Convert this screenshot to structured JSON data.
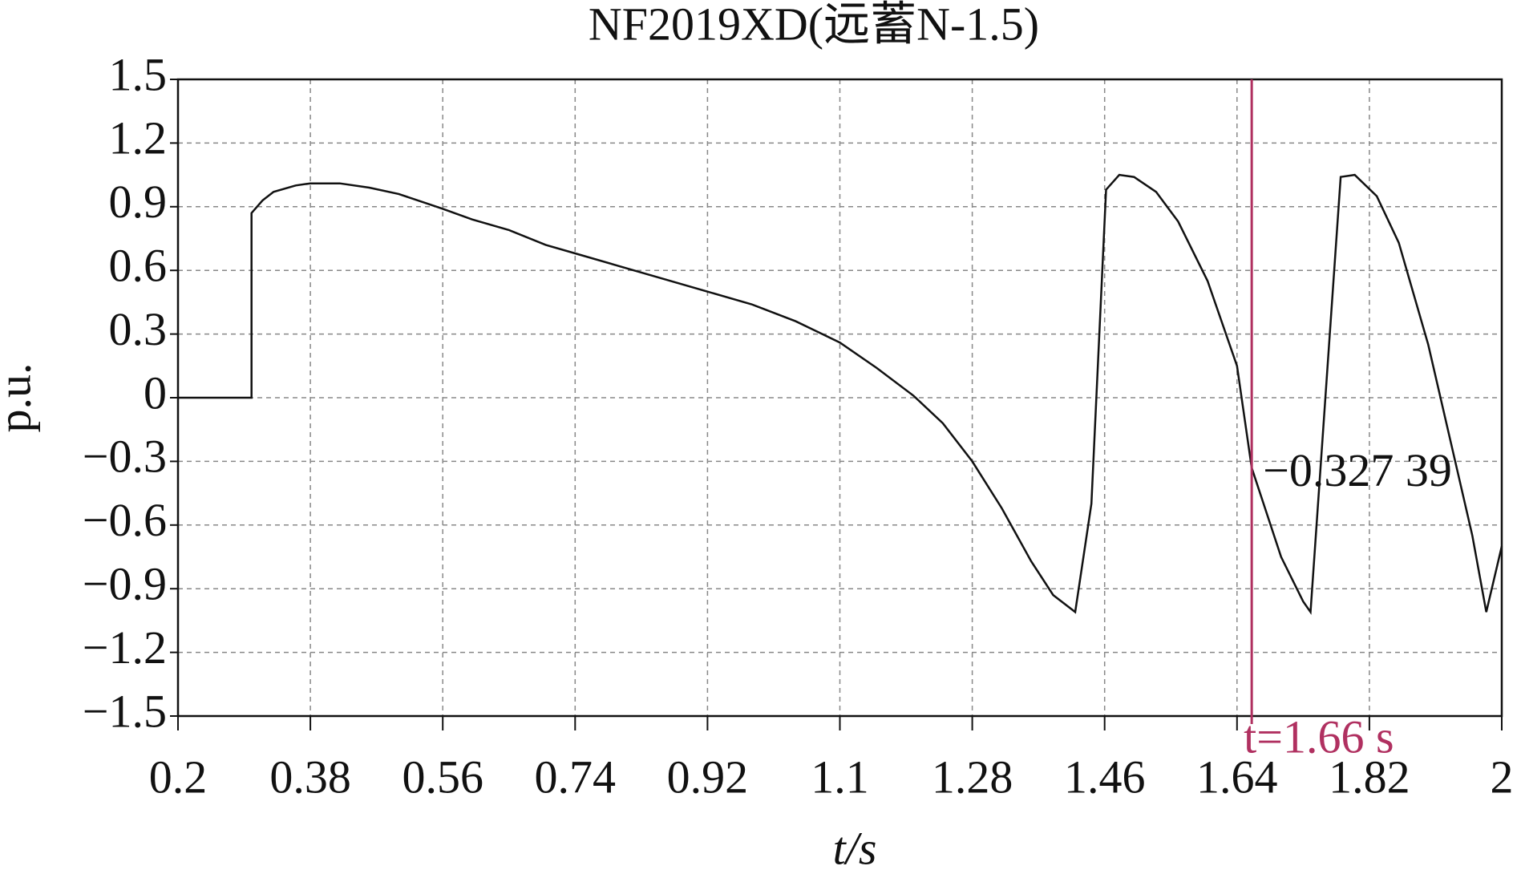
{
  "chart_data": {
    "type": "line",
    "title": "NF2019XD(远蓄N-1.5)",
    "xlabel": "t/s",
    "ylabel": "p.u.",
    "x": [
      0.2,
      0.3,
      0.3,
      0.315,
      0.33,
      0.36,
      0.38,
      0.42,
      0.46,
      0.5,
      0.56,
      0.6,
      0.65,
      0.7,
      0.74,
      0.8,
      0.86,
      0.92,
      0.98,
      1.04,
      1.1,
      1.15,
      1.2,
      1.24,
      1.28,
      1.32,
      1.36,
      1.39,
      1.42,
      1.442,
      1.462,
      1.48,
      1.5,
      1.53,
      1.56,
      1.6,
      1.64,
      1.66,
      1.7,
      1.73,
      1.74,
      1.781,
      1.8,
      1.83,
      1.86,
      1.9,
      1.94,
      1.96,
      1.979,
      2.0
    ],
    "series": [
      {
        "color": "#111111",
        "values": [
          0,
          0,
          0.87,
          0.93,
          0.97,
          1.0,
          1.01,
          1.01,
          0.99,
          0.96,
          0.89,
          0.84,
          0.79,
          0.72,
          0.68,
          0.62,
          0.56,
          0.5,
          0.44,
          0.36,
          0.26,
          0.14,
          0.01,
          -0.12,
          -0.3,
          -0.52,
          -0.77,
          -0.93,
          -1.01,
          -0.5,
          0.98,
          1.05,
          1.04,
          0.97,
          0.83,
          0.55,
          0.15,
          -0.33,
          -0.75,
          -0.96,
          -1.01,
          1.04,
          1.05,
          0.95,
          0.73,
          0.25,
          -0.35,
          -0.65,
          -1.01,
          -0.7
        ]
      }
    ],
    "xlim": [
      0.2,
      2
    ],
    "xticks": [
      0.2,
      0.38,
      0.56,
      0.74,
      0.92,
      1.1,
      1.28,
      1.46,
      1.64,
      1.82,
      2
    ],
    "ylim": [
      -1.5,
      1.5
    ],
    "yticks": [
      {
        "value": -1.5,
        "label": "−1.5"
      },
      {
        "value": -1.2,
        "label": "−1.2"
      },
      {
        "value": -0.9,
        "label": "−0.9"
      },
      {
        "value": -0.6,
        "label": "−0.6"
      },
      {
        "value": -0.3,
        "label": "−0.3"
      },
      0,
      0.3,
      0.6,
      0.9,
      1.2,
      1.5
    ],
    "grid": true,
    "cursor": {
      "x": 1.66,
      "label": "t=1.66 s",
      "value": -0.32739,
      "value_label": "−0.327 39",
      "color": "#b03060"
    }
  }
}
